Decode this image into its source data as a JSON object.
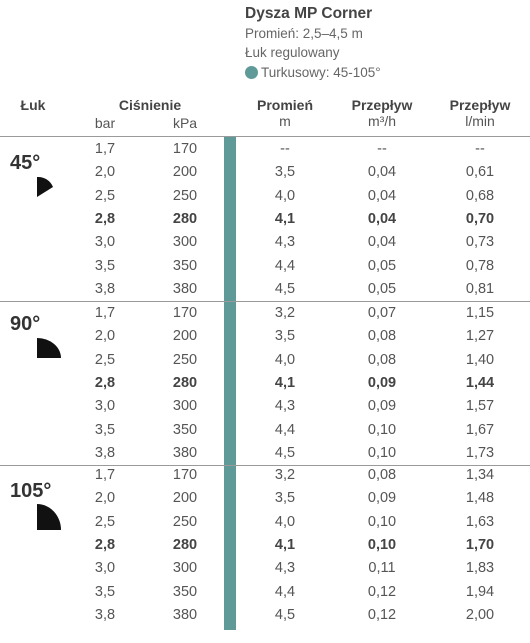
{
  "header": {
    "title": "Dysza MP Corner",
    "radius_line": "Promień: 2,5–4,5 m",
    "arc_line": "Łuk regulowany",
    "legend_label": "Turkusowy: 45-105°",
    "legend_color": "#5f9a98"
  },
  "columns": {
    "arc": "Łuk",
    "pressure": "Ciśnienie",
    "bar": "bar",
    "kpa": "kPa",
    "radius": "Promień",
    "radius_unit": "m",
    "flow1": "Przepływ",
    "flow1_unit": "m³/h",
    "flow2": "Przepływ",
    "flow2_unit": "l/min"
  },
  "groups": [
    {
      "arc": "45°",
      "rows": [
        [
          "1,7",
          "170",
          "--",
          "--",
          "--"
        ],
        [
          "2,0",
          "200",
          "3,5",
          "0,04",
          "0,61"
        ],
        [
          "2,5",
          "250",
          "4,0",
          "0,04",
          "0,68"
        ],
        [
          "2,8",
          "280",
          "4,1",
          "0,04",
          "0,70"
        ],
        [
          "3,0",
          "300",
          "4,3",
          "0,04",
          "0,73"
        ],
        [
          "3,5",
          "350",
          "4,4",
          "0,05",
          "0,78"
        ],
        [
          "3,8",
          "380",
          "4,5",
          "0,05",
          "0,81"
        ]
      ]
    },
    {
      "arc": "90°",
      "rows": [
        [
          "1,7",
          "170",
          "3,2",
          "0,07",
          "1,15"
        ],
        [
          "2,0",
          "200",
          "3,5",
          "0,08",
          "1,27"
        ],
        [
          "2,5",
          "250",
          "4,0",
          "0,08",
          "1,40"
        ],
        [
          "2,8",
          "280",
          "4,1",
          "0,09",
          "1,44"
        ],
        [
          "3,0",
          "300",
          "4,3",
          "0,09",
          "1,57"
        ],
        [
          "3,5",
          "350",
          "4,4",
          "0,10",
          "1,67"
        ],
        [
          "3,8",
          "380",
          "4,5",
          "0,10",
          "1,73"
        ]
      ]
    },
    {
      "arc": "105°",
      "rows": [
        [
          "1,7",
          "170",
          "3,2",
          "0,08",
          "1,34"
        ],
        [
          "2,0",
          "200",
          "3,5",
          "0,09",
          "1,48"
        ],
        [
          "2,5",
          "250",
          "4,0",
          "0,10",
          "1,63"
        ],
        [
          "2,8",
          "280",
          "4,1",
          "0,10",
          "1,70"
        ],
        [
          "3,0",
          "300",
          "4,3",
          "0,11",
          "1,83"
        ],
        [
          "3,5",
          "350",
          "4,4",
          "0,12",
          "1,94"
        ],
        [
          "3,8",
          "380",
          "4,5",
          "0,12",
          "2,00"
        ]
      ]
    }
  ]
}
